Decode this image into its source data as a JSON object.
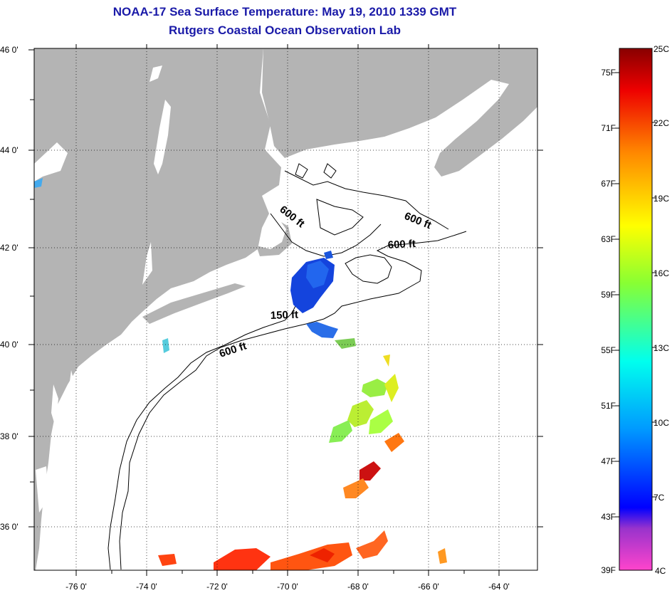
{
  "title": {
    "line1": "NOAA-17 Sea Surface Temperature:  May 19, 2010 1339 GMT",
    "line2": "Rutgers Coastal Ocean Observation Lab"
  },
  "map": {
    "lat_labels": [
      "46 0'",
      "44 0'",
      "42 0'",
      "40 0'",
      "38 0'",
      "36 0'"
    ],
    "lon_labels": [
      "-76 0'",
      "-74 0'",
      "-72 0'",
      "-70 0'",
      "-68 0'",
      "-66 0'",
      "-64 0'"
    ],
    "contour_labels": [
      "600 ft",
      "600 ft",
      "600 ft",
      "150 ft",
      "600 ft"
    ]
  },
  "colorbar": {
    "fahrenheit_labels": [
      "75F",
      "71F",
      "67F",
      "63F",
      "59F",
      "55F",
      "51F",
      "47F",
      "43F",
      "39F"
    ],
    "celsius_labels": [
      "25C",
      "22C",
      "19C",
      "16C",
      "13C",
      "10C",
      "7C",
      "4C"
    ]
  },
  "colors": {
    "land": "#b4b4b4",
    "title": "#1a1aa8"
  }
}
